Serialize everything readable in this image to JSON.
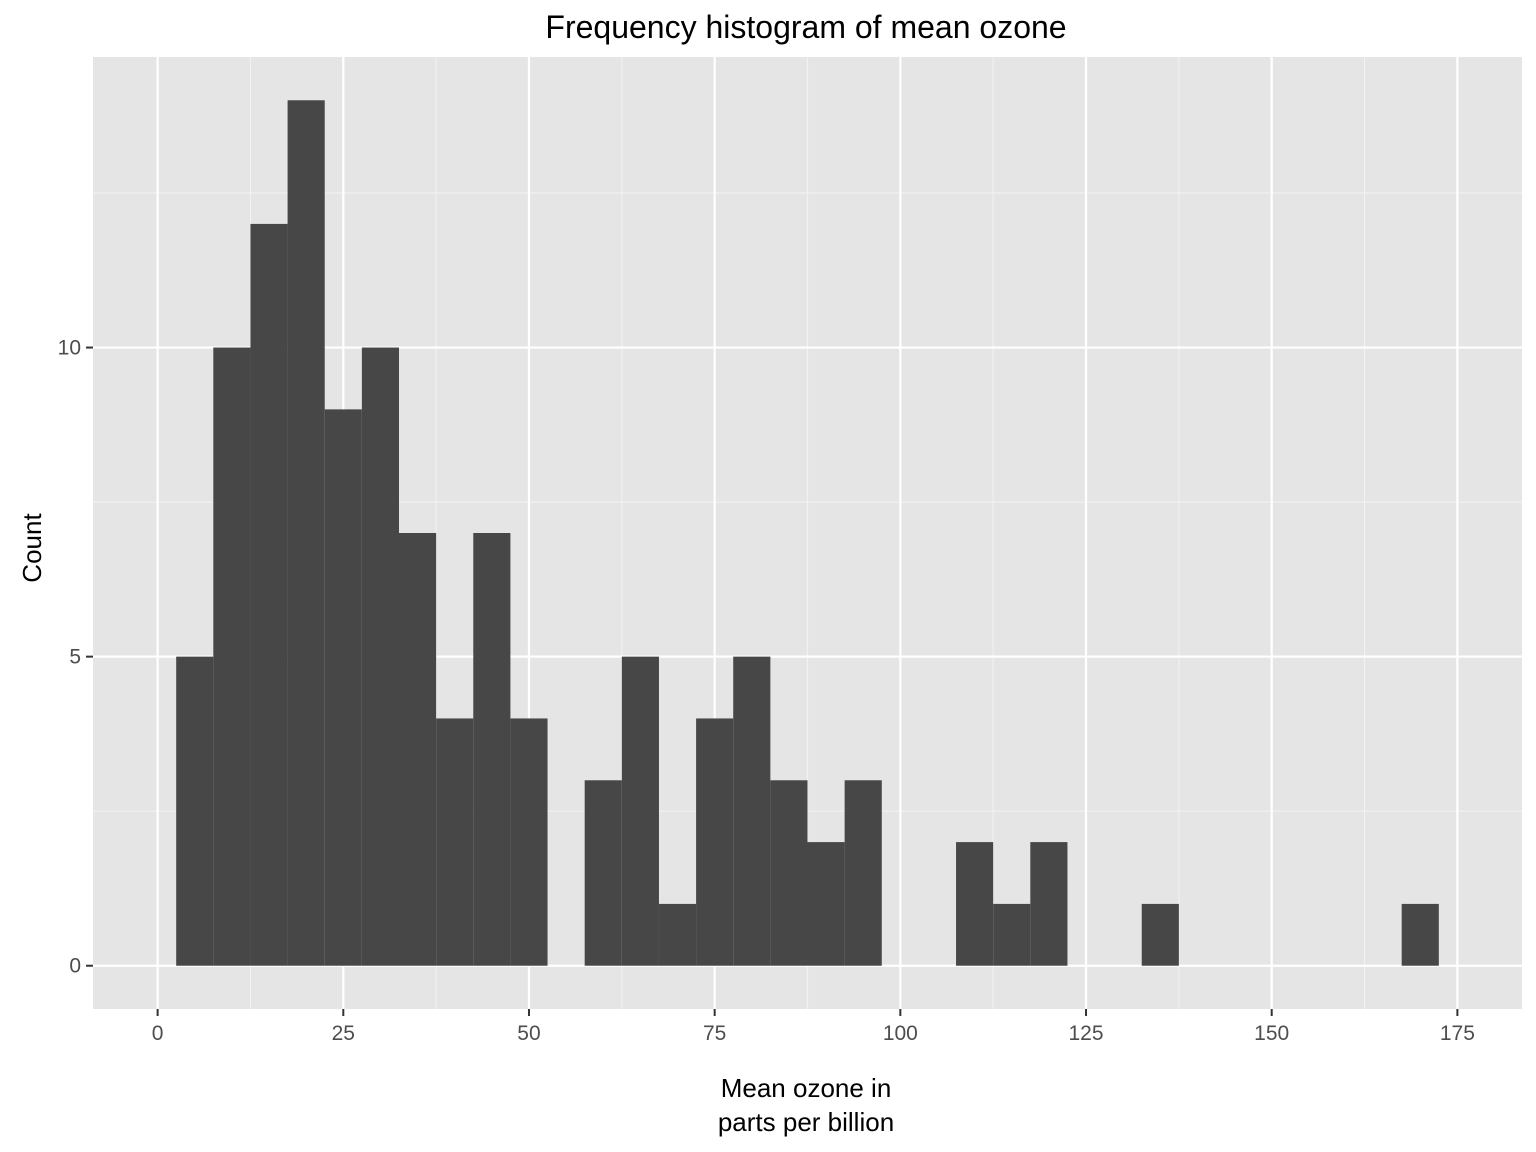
{
  "chart_data": {
    "type": "bar",
    "title": "Frequency histogram of mean ozone",
    "xlabel_lines": [
      "Mean ozone in",
      "parts per billion"
    ],
    "ylabel": "Count",
    "binwidth": 5,
    "bins": [
      {
        "start": 2.5,
        "end": 7.5,
        "count": 5
      },
      {
        "start": 7.5,
        "end": 12.5,
        "count": 10
      },
      {
        "start": 12.5,
        "end": 17.5,
        "count": 12
      },
      {
        "start": 17.5,
        "end": 22.5,
        "count": 14
      },
      {
        "start": 22.5,
        "end": 27.5,
        "count": 9
      },
      {
        "start": 27.5,
        "end": 32.5,
        "count": 10
      },
      {
        "start": 32.5,
        "end": 37.5,
        "count": 7
      },
      {
        "start": 37.5,
        "end": 42.5,
        "count": 4
      },
      {
        "start": 42.5,
        "end": 47.5,
        "count": 7
      },
      {
        "start": 47.5,
        "end": 52.5,
        "count": 4
      },
      {
        "start": 52.5,
        "end": 57.5,
        "count": 0
      },
      {
        "start": 57.5,
        "end": 62.5,
        "count": 3
      },
      {
        "start": 62.5,
        "end": 67.5,
        "count": 5
      },
      {
        "start": 67.5,
        "end": 72.5,
        "count": 1
      },
      {
        "start": 72.5,
        "end": 77.5,
        "count": 4
      },
      {
        "start": 77.5,
        "end": 82.5,
        "count": 5
      },
      {
        "start": 82.5,
        "end": 87.5,
        "count": 3
      },
      {
        "start": 87.5,
        "end": 92.5,
        "count": 2
      },
      {
        "start": 92.5,
        "end": 97.5,
        "count": 3
      },
      {
        "start": 97.5,
        "end": 102.5,
        "count": 0
      },
      {
        "start": 102.5,
        "end": 107.5,
        "count": 0
      },
      {
        "start": 107.5,
        "end": 112.5,
        "count": 2
      },
      {
        "start": 112.5,
        "end": 117.5,
        "count": 1
      },
      {
        "start": 117.5,
        "end": 122.5,
        "count": 2
      },
      {
        "start": 122.5,
        "end": 127.5,
        "count": 0
      },
      {
        "start": 127.5,
        "end": 132.5,
        "count": 0
      },
      {
        "start": 132.5,
        "end": 137.5,
        "count": 1
      },
      {
        "start": 137.5,
        "end": 142.5,
        "count": 0
      },
      {
        "start": 142.5,
        "end": 147.5,
        "count": 0
      },
      {
        "start": 147.5,
        "end": 152.5,
        "count": 0
      },
      {
        "start": 152.5,
        "end": 157.5,
        "count": 0
      },
      {
        "start": 157.5,
        "end": 162.5,
        "count": 0
      },
      {
        "start": 162.5,
        "end": 167.5,
        "count": 0
      },
      {
        "start": 167.5,
        "end": 172.5,
        "count": 1
      }
    ],
    "xlim": [
      -8.7,
      183.7
    ],
    "ylim": [
      -0.7,
      14.7
    ],
    "x_ticks": [
      0,
      25,
      50,
      75,
      100,
      125,
      150,
      175
    ],
    "x_tick_labels": [
      "0",
      "25",
      "50",
      "75",
      "100",
      "125",
      "150",
      "175"
    ],
    "y_ticks": [
      0,
      5,
      10
    ],
    "y_tick_labels": [
      "0",
      "5",
      "10"
    ],
    "grid": true,
    "legend": "none",
    "colors": {
      "bar": "#474747",
      "panel": "#e5e5e5",
      "grid_major": "#ffffff",
      "grid_minor": "#f2f2f2",
      "tick": "#333333"
    }
  }
}
